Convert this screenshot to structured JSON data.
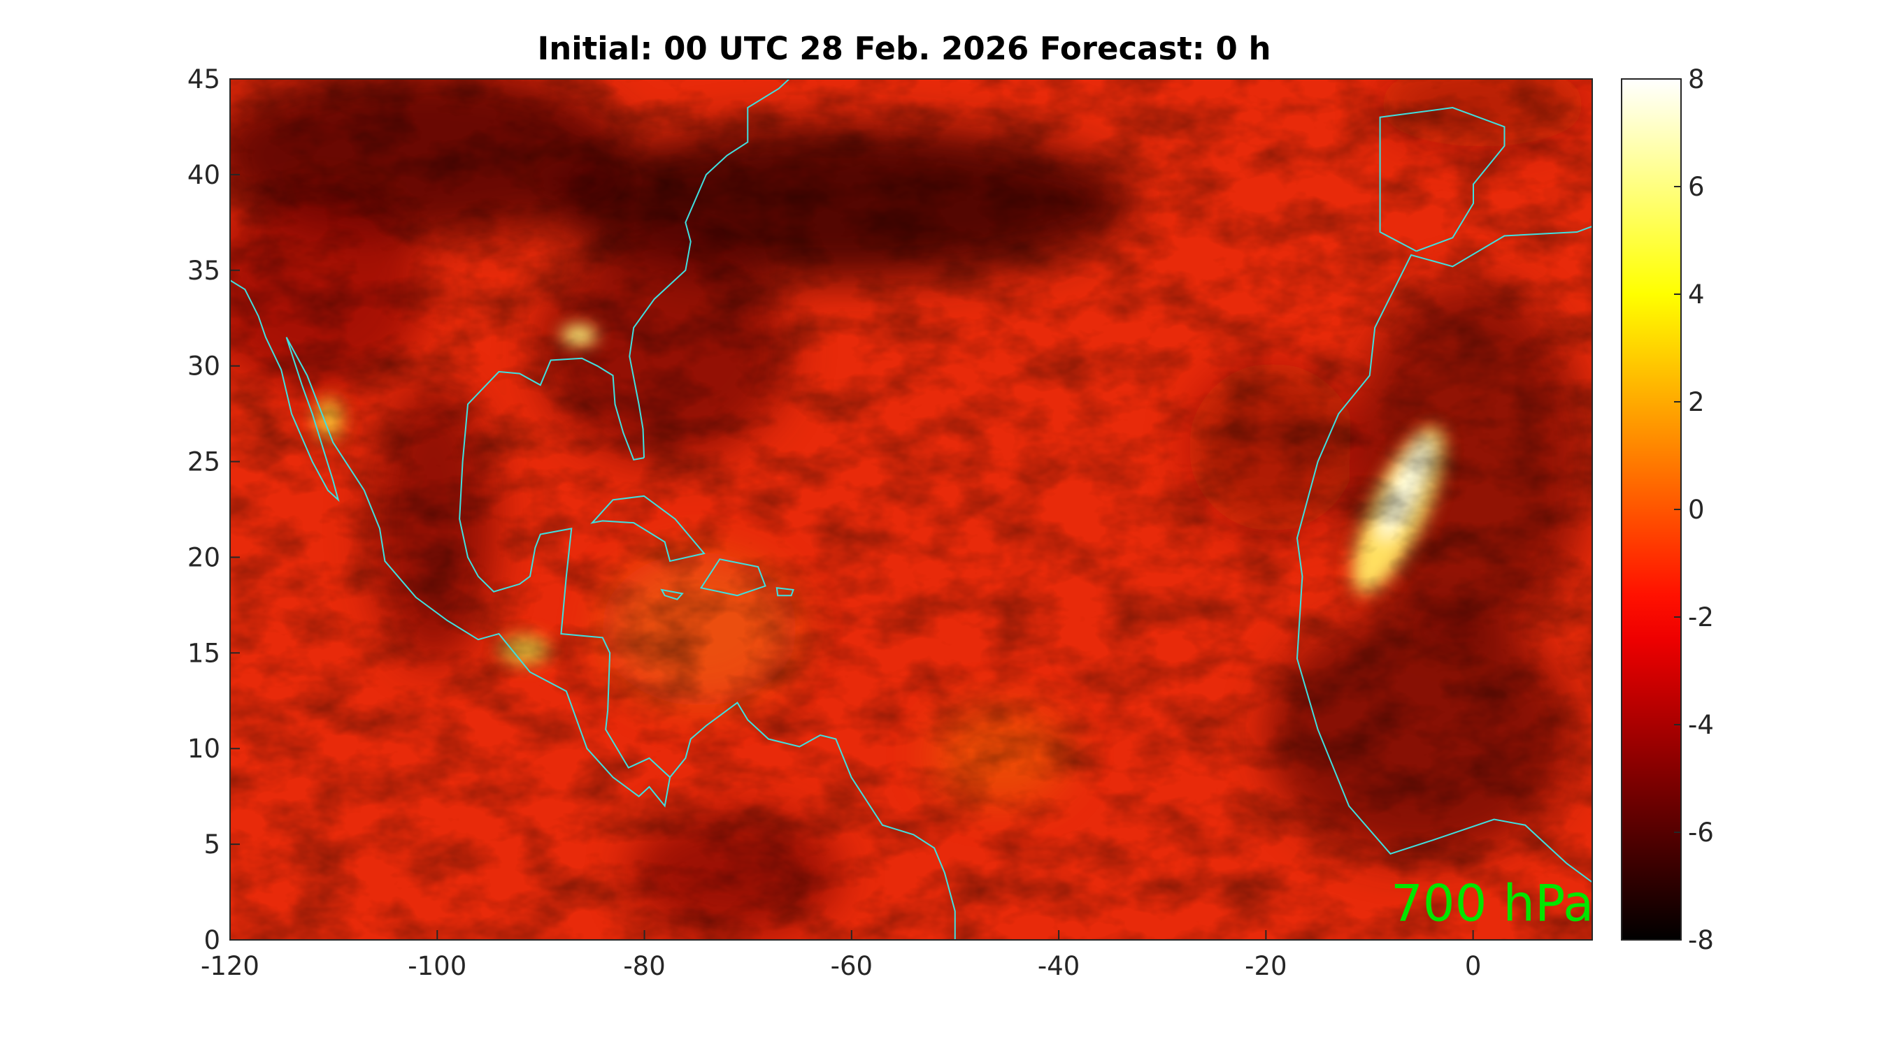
{
  "chart_data": {
    "type": "heatmap",
    "title": "Initial: 00 UTC 28 Feb. 2026 Forecast: 0 h",
    "annotation": "700 hPa",
    "annotation_color": "#00e600",
    "coast_color": "#40e0e0",
    "colormap": "hot",
    "xlim": [
      -120,
      11.5
    ],
    "xticks": [
      -120,
      -100,
      -80,
      -60,
      -40,
      -20,
      0
    ],
    "ylim": [
      0,
      45
    ],
    "yticks": [
      0,
      5,
      10,
      15,
      20,
      25,
      30,
      35,
      40,
      45
    ],
    "clim": [
      -8,
      8
    ],
    "cticks": [
      -8,
      -6,
      -4,
      -2,
      0,
      2,
      4,
      6,
      8
    ]
  }
}
